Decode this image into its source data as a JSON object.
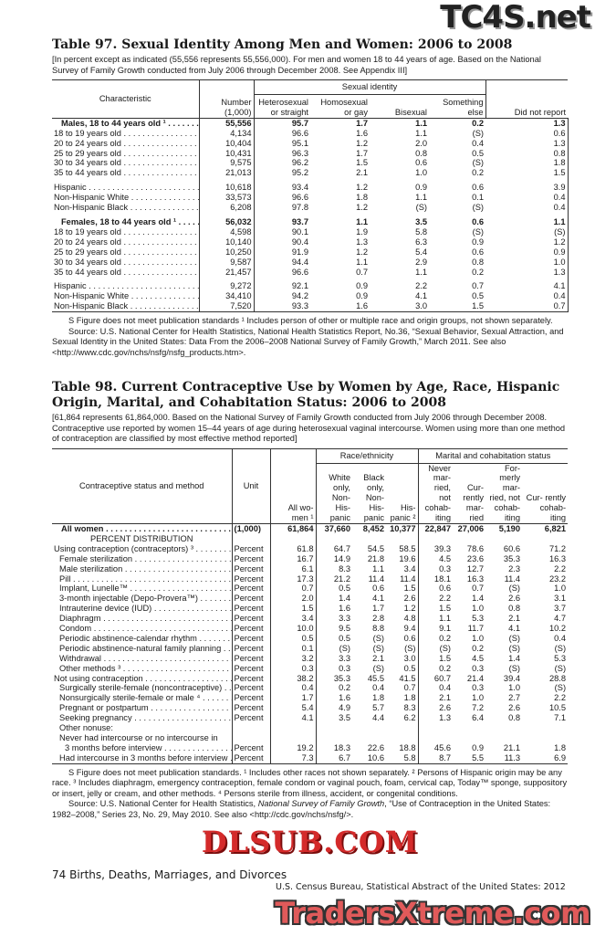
{
  "watermarks": {
    "top": "TC4S.net",
    "middle": "DLSUB.COM",
    "bottom": "TradersXtreme.com"
  },
  "table97": {
    "title": "Table 97. Sexual Identity Among Men and Women: 2006 to 2008",
    "headnote": "[In percent except as indicated (55,556 represents 55,556,000). For men and women 18 to 44 years of age. Based on the National Survey of Family Growth conducted from July 2006 through December 2008. See Appendix III]",
    "headers": {
      "characteristic": "Characteristic",
      "number": "Number (1,000)",
      "group": "Sexual identity",
      "hetero": "Heterosexual or straight",
      "homo": "Homosexual or gay",
      "bisexual": "Bisexual",
      "something": "Something else",
      "didnot": "Did not report"
    },
    "rows": [
      {
        "label": "Males, 18 to 44 years old ¹",
        "bold": true,
        "values": [
          "55,556",
          "95.7",
          "1.7",
          "1.1",
          "0.2",
          "1.3"
        ]
      },
      {
        "label": "18 to 19 years old",
        "values": [
          "4,134",
          "96.6",
          "1.6",
          "1.1",
          "(S)",
          "0.6"
        ]
      },
      {
        "label": "20 to 24 years old",
        "values": [
          "10,404",
          "95.1",
          "1.2",
          "2.0",
          "0.4",
          "1.3"
        ]
      },
      {
        "label": "25 to 29 years old",
        "values": [
          "10,431",
          "96.3",
          "1.7",
          "0.8",
          "0.5",
          "0.8"
        ]
      },
      {
        "label": "30 to 34 years old",
        "values": [
          "9,575",
          "96.2",
          "1.5",
          "0.6",
          "(S)",
          "1.8"
        ]
      },
      {
        "label": "35 to 44 years old",
        "values": [
          "21,013",
          "95.2",
          "2.1",
          "1.0",
          "0.2",
          "1.5"
        ]
      },
      {
        "label": "Hispanic",
        "gap": true,
        "values": [
          "10,618",
          "93.4",
          "1.2",
          "0.9",
          "0.6",
          "3.9"
        ]
      },
      {
        "label": "Non-Hispanic White",
        "values": [
          "33,573",
          "96.6",
          "1.8",
          "1.1",
          "0.1",
          "0.4"
        ]
      },
      {
        "label": "Non-Hispanic Black",
        "values": [
          "6,208",
          "97.8",
          "1.2",
          "(S)",
          "(S)",
          "0.4"
        ]
      },
      {
        "label": "Females, 18 to 44 years old ¹",
        "bold": true,
        "gap": true,
        "values": [
          "56,032",
          "93.7",
          "1.1",
          "3.5",
          "0.6",
          "1.1"
        ]
      },
      {
        "label": "18 to 19 years old",
        "values": [
          "4,598",
          "90.1",
          "1.9",
          "5.8",
          "(S)",
          "(S)"
        ]
      },
      {
        "label": "20 to 24 years old",
        "values": [
          "10,140",
          "90.4",
          "1.3",
          "6.3",
          "0.9",
          "1.2"
        ]
      },
      {
        "label": "25 to 29 years old",
        "values": [
          "10,250",
          "91.9",
          "1.2",
          "5.4",
          "0.6",
          "0.9"
        ]
      },
      {
        "label": "30 to 34 years old",
        "values": [
          "9,587",
          "94.4",
          "1.1",
          "2.9",
          "0.8",
          "1.0"
        ]
      },
      {
        "label": "35 to 44 years old",
        "values": [
          "21,457",
          "96.6",
          "0.7",
          "1.1",
          "0.2",
          "1.3"
        ]
      },
      {
        "label": "Hispanic",
        "gap": true,
        "values": [
          "9,272",
          "92.1",
          "0.9",
          "2.2",
          "0.7",
          "4.1"
        ]
      },
      {
        "label": "Non-Hispanic White",
        "values": [
          "34,410",
          "94.2",
          "0.9",
          "4.1",
          "0.5",
          "0.4"
        ]
      },
      {
        "label": "Non-Hispanic Black",
        "values": [
          "7,520",
          "93.3",
          "1.6",
          "3.0",
          "1.5",
          "0.7"
        ]
      }
    ],
    "footnote": "S Figure does not meet publication standards ¹ Includes person of other or multiple race and origin groups, not shown separately.",
    "source": "Source: U.S. National Center for Health Statistics, National Health Statistics Report, No.36, “Sexual Behavior, Sexual Attraction, and Sexual Identity in the United States: Data From the 2006–2008 National Survey of Family Growth,” March 2011. See also <http://www.cdc.gov/nchs/nsfg/nsfg_products.htm>."
  },
  "table98": {
    "title": "Table 98. Current Contraceptive Use by Women by Age, Race, Hispanic Origin, Marital, and Cohabitation Status: 2006 to 2008",
    "headnote": "[61,864 represents 61,864,000. Based on the National Survey of Family Growth conducted from July 2006 through December 2008. Contraceptive use reported by women 15–44 years of age during heterosexual vaginal intercourse. Women using more than one method of contraception are classified by most effective method reported]",
    "headers": {
      "stub": "Contraceptive status and method",
      "unit": "Unit",
      "all": "All wo- men ¹",
      "race_group": "Race/ethnicity",
      "white": "White only, Non- His- panic",
      "black": "Black only, Non- His- panic",
      "hispanic": "His- panic ²",
      "marital_group": "Marital and cohabitation status",
      "never": "Never mar- ried, not cohab- iting",
      "curmar": "Cur- rently mar- ried",
      "formerly": "For- merly mar- ried, not cohab- iting",
      "curcohab": "Cur- rently cohab- iting"
    },
    "rows": [
      {
        "label": "All women",
        "bold": true,
        "unit": "(1,000)",
        "values": [
          "61,864",
          "37,660",
          "8,452",
          "10,377",
          "22,847",
          "27,006",
          "5,190",
          "6,821"
        ]
      },
      {
        "label": "PERCENT DISTRIBUTION",
        "center": true,
        "unit": "",
        "values": []
      },
      {
        "label": "Using contraception (contraceptors) ³",
        "unit": "Percent",
        "values": [
          "61.8",
          "64.7",
          "54.5",
          "58.5",
          "39.3",
          "78.6",
          "60.6",
          "71.2"
        ]
      },
      {
        "label": "Female sterilization",
        "indent": 1,
        "unit": "Percent",
        "values": [
          "16.7",
          "14.9",
          "21.8",
          "19.6",
          "4.5",
          "23.6",
          "35.3",
          "16.3"
        ]
      },
      {
        "label": "Male sterilization",
        "indent": 1,
        "unit": "Percent",
        "values": [
          "6.1",
          "8.3",
          "1.1",
          "3.4",
          "0.3",
          "12.7",
          "2.3",
          "2.2"
        ]
      },
      {
        "label": "Pill",
        "indent": 1,
        "unit": "Percent",
        "values": [
          "17.3",
          "21.2",
          "11.4",
          "11.4",
          "18.1",
          "16.3",
          "11.4",
          "23.2"
        ]
      },
      {
        "label": "Implant, Lunelle™",
        "indent": 1,
        "unit": "Percent",
        "values": [
          "0.7",
          "0.5",
          "0.6",
          "1.5",
          "0.6",
          "0.7",
          "(S)",
          "1.0"
        ]
      },
      {
        "label": "3-month injectable (Depo-Provera™)",
        "indent": 1,
        "unit": "Percent",
        "values": [
          "2.0",
          "1.4",
          "4.1",
          "2.6",
          "2.2",
          "1.4",
          "2.6",
          "3.1"
        ]
      },
      {
        "label": "Intrauterine device (IUD)",
        "indent": 1,
        "unit": "Percent",
        "values": [
          "1.5",
          "1.6",
          "1.7",
          "1.2",
          "1.5",
          "1.0",
          "0.8",
          "3.7"
        ]
      },
      {
        "label": "Diaphragm",
        "indent": 1,
        "unit": "Percent",
        "values": [
          "3.4",
          "3.3",
          "2.8",
          "4.8",
          "1.1",
          "5.3",
          "2.1",
          "4.7"
        ]
      },
      {
        "label": "Condom",
        "indent": 1,
        "unit": "Percent",
        "values": [
          "10.0",
          "9.5",
          "8.8",
          "9.4",
          "9.1",
          "11.7",
          "4.1",
          "10.2"
        ]
      },
      {
        "label": "Periodic abstinence-calendar rhythm",
        "indent": 1,
        "unit": "Percent",
        "values": [
          "0.5",
          "0.5",
          "(S)",
          "0.6",
          "0.2",
          "1.0",
          "(S)",
          "0.4"
        ]
      },
      {
        "label": "Periodic abstinence-natural family planning",
        "indent": 1,
        "unit": "Percent",
        "values": [
          "0.1",
          "(S)",
          "(S)",
          "(S)",
          "(S)",
          "0.2",
          "(S)",
          "(S)"
        ]
      },
      {
        "label": "Withdrawal",
        "indent": 1,
        "unit": "Percent",
        "values": [
          "3.2",
          "3.3",
          "2.1",
          "3.0",
          "1.5",
          "4.5",
          "1.4",
          "5.3"
        ]
      },
      {
        "label": "Other methods ³",
        "indent": 1,
        "unit": "Percent",
        "values": [
          "0.3",
          "0.3",
          "(S)",
          "0.5",
          "0.2",
          "0.3",
          "(S)",
          "(S)"
        ]
      },
      {
        "label": "Not using contraception",
        "unit": "Percent",
        "values": [
          "38.2",
          "35.3",
          "45.5",
          "41.5",
          "60.7",
          "21.4",
          "39.4",
          "28.8"
        ]
      },
      {
        "label": "Surgically sterile-female (noncontraceptive)",
        "indent": 1,
        "unit": "Percent",
        "values": [
          "0.4",
          "0.2",
          "0.4",
          "0.7",
          "0.4",
          "0.3",
          "1.0",
          "(S)"
        ]
      },
      {
        "label": "Nonsurgically sterile-female or male ⁴",
        "indent": 1,
        "unit": "Percent",
        "values": [
          "1.7",
          "1.6",
          "1.8",
          "1.8",
          "2.1",
          "1.0",
          "2.7",
          "2.2"
        ]
      },
      {
        "label": "Pregnant or postpartum",
        "indent": 1,
        "unit": "Percent",
        "values": [
          "5.4",
          "4.9",
          "5.7",
          "8.3",
          "2.6",
          "7.2",
          "2.6",
          "10.5"
        ]
      },
      {
        "label": "Seeking pregnancy",
        "indent": 1,
        "unit": "Percent",
        "values": [
          "4.1",
          "3.5",
          "4.4",
          "6.2",
          "1.3",
          "6.4",
          "0.8",
          "7.1"
        ]
      },
      {
        "label": "Other nonuse:",
        "indent": 1,
        "nodots": true,
        "unit": "",
        "values": []
      },
      {
        "label": "Never had intercourse or no intercourse in",
        "indent": 1,
        "nodots": true,
        "unit": "",
        "values": []
      },
      {
        "label": "3 months before interview",
        "indent": 2,
        "unit": "Percent",
        "values": [
          "19.2",
          "18.3",
          "22.6",
          "18.8",
          "45.6",
          "0.9",
          "21.1",
          "1.8"
        ]
      },
      {
        "label": "Had intercourse in 3 months before interview",
        "indent": 1,
        "unit": "Percent",
        "values": [
          "7.3",
          "6.7",
          "10.6",
          "5.8",
          "8.7",
          "5.5",
          "11.3",
          "6.9"
        ]
      }
    ],
    "footnote": "S Figure does not meet publication standards. ¹ Includes other races not shown separately. ² Persons of Hispanic origin may be any race. ³ Includes diaphragm, emergency contraception, female condom or vaginal pouch, foam, cervical cap, Today™ sponge, suppository or insert, jelly or cream, and other methods. ⁴ Persons sterile from illness, accident, or congenital conditions.",
    "source_prefix": "Source: U.S. National Center for Health Statistics, ",
    "source_italic": "National Survey of Family Growth",
    "source_suffix": ", “Use of Contraception in the United States: 1982–2008,” Series 23, No. 29, May 2010. See also <http://cdc.gov/nchs/nsfg/>."
  },
  "footer": {
    "page": "74  Births, Deaths, Marriages, and Divorces",
    "publication": "U.S. Census Bureau, Statistical Abstract of the United States: 2012"
  }
}
